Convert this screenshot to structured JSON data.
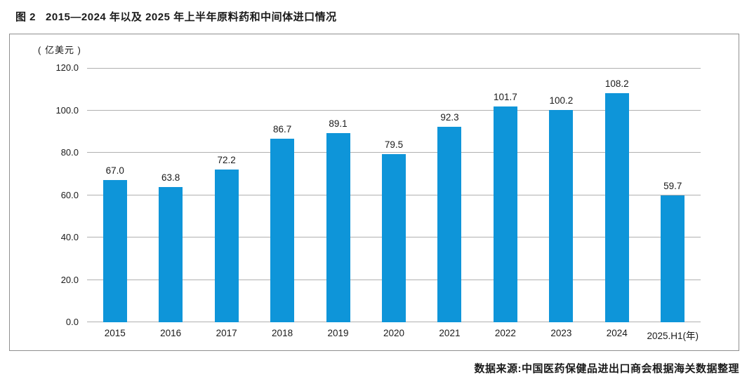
{
  "figure": {
    "label": "图 2",
    "title": "2015—2024 年以及 2025 年上半年原料药和中间体进口情况"
  },
  "chart_data": {
    "type": "bar",
    "unit_label": "( 亿美元 )",
    "categories": [
      "2015",
      "2016",
      "2017",
      "2018",
      "2019",
      "2020",
      "2021",
      "2022",
      "2023",
      "2024",
      "2025.H1(年)"
    ],
    "values": [
      67.0,
      63.8,
      72.2,
      86.7,
      89.1,
      79.5,
      92.3,
      101.7,
      100.2,
      108.2,
      59.7
    ],
    "title": "2015—2024 年以及 2025 年上半年原料药和中间体进口情况",
    "xlabel": "年",
    "ylabel": "亿美元",
    "ylim": [
      0,
      120
    ],
    "ytick_step": 20,
    "ytick_labels": [
      "0.0",
      "20.0",
      "40.0",
      "60.0",
      "80.0",
      "100.0",
      "120.0"
    ],
    "grid": true,
    "legend": "none",
    "bar_color": "#0e95d9",
    "gridline_color": "#b0b0b0",
    "frame_color": "#8f8f8f"
  },
  "footer": {
    "source": "数据来源:中国医药保健品进出口商会根据海关数据整理"
  }
}
